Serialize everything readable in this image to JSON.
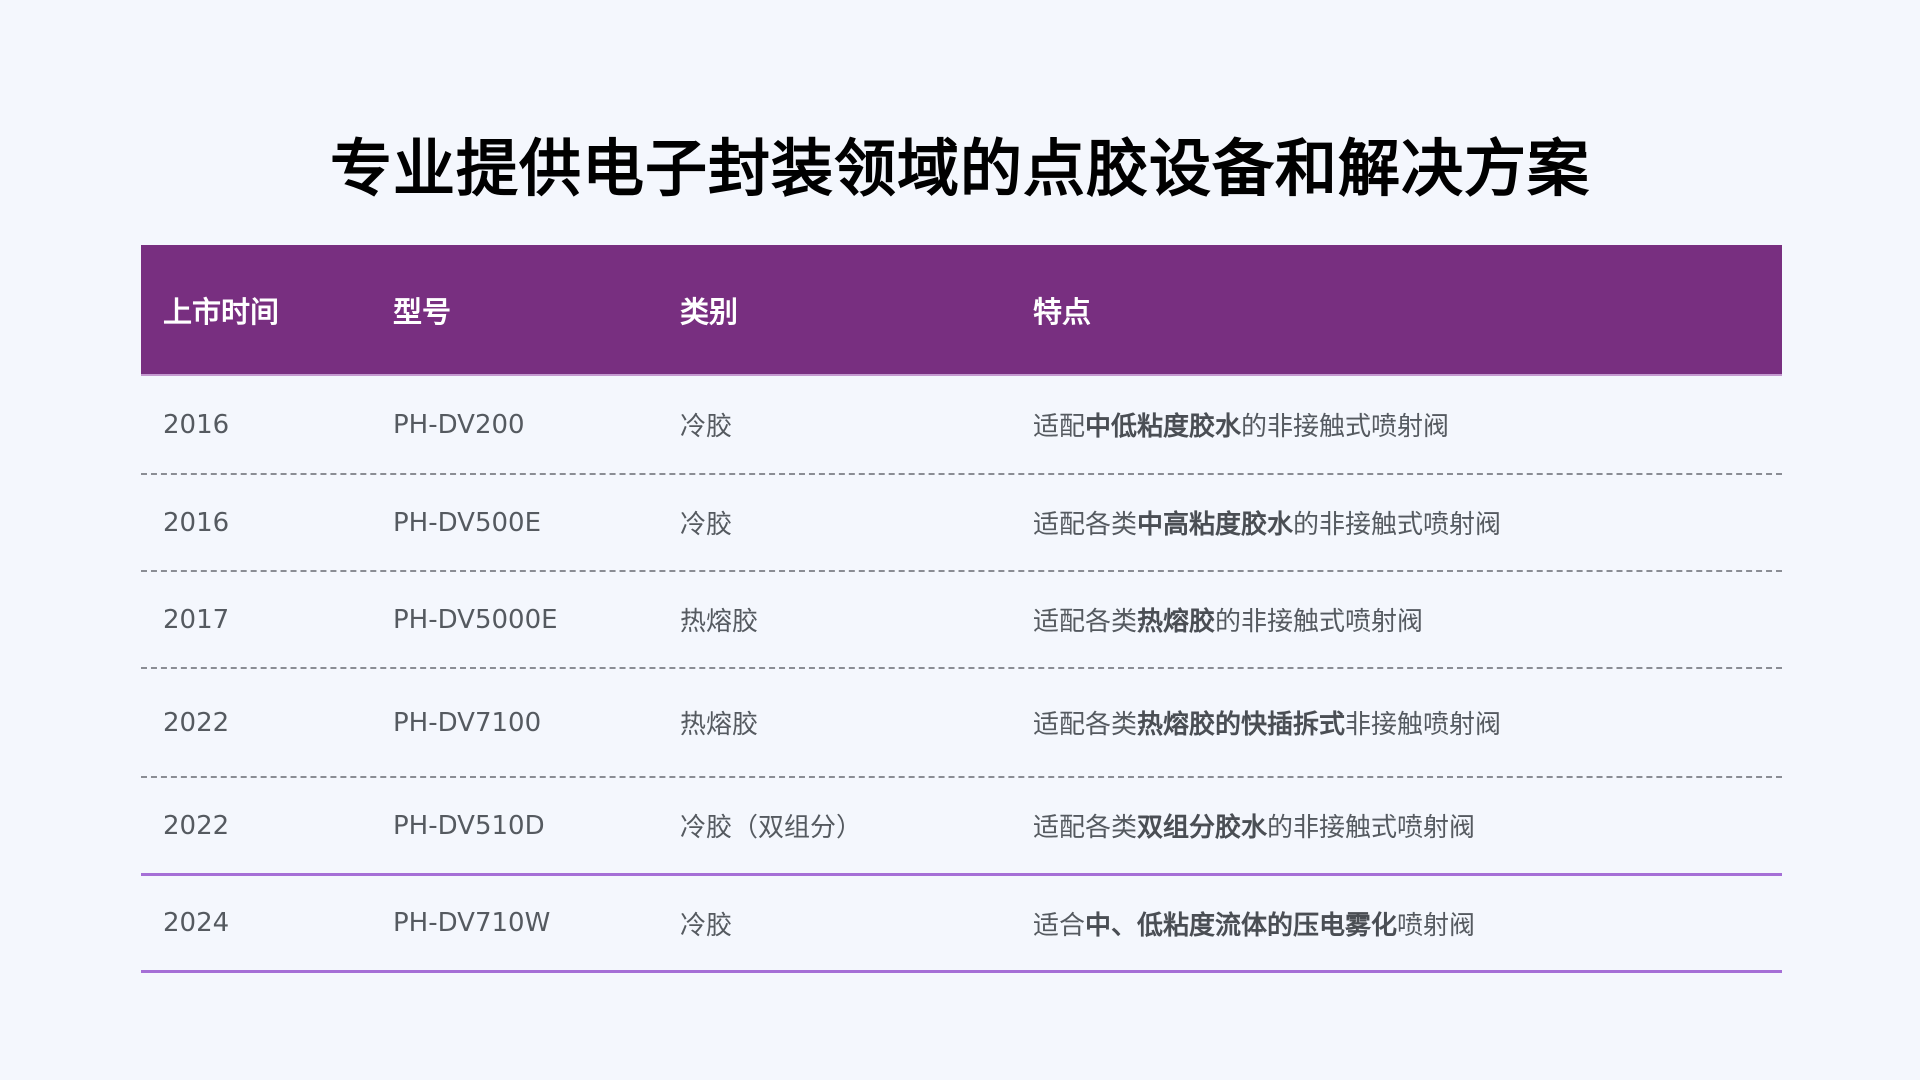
{
  "title": "专业提供电子封装领域的点胶设备和解决方案",
  "table": {
    "headers": [
      "上市时间",
      "型号",
      "类别",
      "特点"
    ],
    "rows": [
      {
        "year": "2016",
        "model": "PH-DV200",
        "category": "冷胶",
        "feature": [
          {
            "t": "适配",
            "b": false
          },
          {
            "t": "中低粘度胶水",
            "b": true
          },
          {
            "t": "的非接触式喷射阀",
            "b": false
          }
        ]
      },
      {
        "year": "2016",
        "model": "PH-DV500E",
        "category": "冷胶",
        "feature": [
          {
            "t": "适配各类",
            "b": false
          },
          {
            "t": "中高粘度胶水",
            "b": true
          },
          {
            "t": "的非接触式喷射阀",
            "b": false
          }
        ]
      },
      {
        "year": "2017",
        "model": "PH-DV5000E",
        "category": "热熔胶",
        "feature": [
          {
            "t": "适配各类",
            "b": false
          },
          {
            "t": "热熔胶",
            "b": true
          },
          {
            "t": "的非接触式喷射阀",
            "b": false
          }
        ]
      },
      {
        "year": "2022",
        "model": "PH-DV7100",
        "category": "热熔胶",
        "feature": [
          {
            "t": "适配各类",
            "b": false
          },
          {
            "t": "热熔胶的快插拆式",
            "b": true
          },
          {
            "t": "非接触喷射阀",
            "b": false
          }
        ]
      },
      {
        "year": "2022",
        "model": "PH-DV510D",
        "category": "冷胶（双组分）",
        "feature": [
          {
            "t": "适配各类",
            "b": false
          },
          {
            "t": "双组分胶水",
            "b": true
          },
          {
            "t": "的非接触式喷射阀",
            "b": false
          }
        ]
      },
      {
        "year": "2024",
        "model": "PH-DV710W",
        "category": "冷胶",
        "feature": [
          {
            "t": "适合",
            "b": false
          },
          {
            "t": "中、低粘度流体的压电雾化",
            "b": true
          },
          {
            "t": "喷射阀",
            "b": false
          }
        ]
      }
    ]
  },
  "colors": {
    "header_bg": "#782f80",
    "accent_line": "#a56fd6",
    "background": "#f4f7fd"
  }
}
